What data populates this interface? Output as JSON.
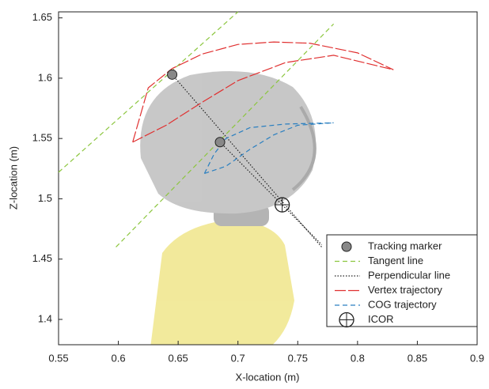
{
  "chart_data": {
    "type": "line",
    "xlabel": "X-location (m)",
    "ylabel": "Z-location (m)",
    "xlim": [
      0.55,
      0.9
    ],
    "ylim": [
      1.379,
      1.655
    ],
    "xticks": [
      0.55,
      0.6,
      0.65,
      0.7,
      0.75,
      0.8,
      0.85,
      0.9
    ],
    "yticks": [
      1.4,
      1.45,
      1.5,
      1.55,
      1.6,
      1.65
    ],
    "legend": "lower right",
    "series": [
      {
        "name": "Tracking marker",
        "color": "#888888",
        "style": "marker",
        "x": [
          0.645,
          0.685
        ],
        "y": [
          1.603,
          1.547
        ]
      },
      {
        "name": "Tangent line",
        "color": "#8cc63f",
        "style": "dashed",
        "x": [
          0.55,
          0.7,
          null,
          0.598,
          0.78
        ],
        "y": [
          1.522,
          1.655,
          null,
          1.46,
          1.645
        ]
      },
      {
        "name": "Perpendicular line",
        "color": "#222222",
        "style": "dotted",
        "x": [
          0.645,
          0.77,
          null,
          0.685,
          0.77
        ],
        "y": [
          1.603,
          1.46,
          null,
          1.547,
          1.462
        ]
      },
      {
        "name": "Vertex trajectory",
        "color": "#e03030",
        "style": "longdash",
        "x": [
          0.612,
          0.625,
          0.645,
          0.67,
          0.7,
          0.73,
          0.76,
          0.8,
          0.83,
          null,
          0.612,
          0.64,
          0.67,
          0.7,
          0.74,
          0.78,
          0.83
        ],
        "y": [
          1.547,
          1.592,
          1.608,
          1.62,
          1.628,
          1.63,
          1.629,
          1.621,
          1.607,
          null,
          1.547,
          1.561,
          1.58,
          1.598,
          1.613,
          1.619,
          1.607
        ]
      },
      {
        "name": "COG trajectory",
        "color": "#2a7fc0",
        "style": "dashed",
        "x": [
          0.672,
          0.68,
          0.69,
          0.71,
          0.74,
          0.78,
          null,
          0.672,
          0.69,
          0.71,
          0.73,
          0.75,
          0.78
        ],
        "y": [
          1.521,
          1.537,
          1.55,
          1.559,
          1.562,
          1.563,
          null,
          1.521,
          1.527,
          1.541,
          1.553,
          1.561,
          1.563
        ]
      },
      {
        "name": "ICOR",
        "color": "#222222",
        "style": "crosshair",
        "x": [
          0.737
        ],
        "y": [
          1.495
        ]
      }
    ]
  }
}
